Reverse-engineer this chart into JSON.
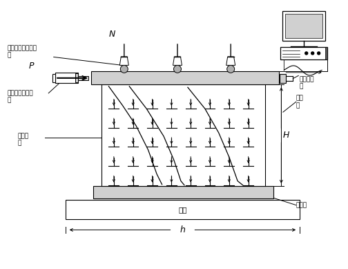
{
  "bg_color": "#ffffff",
  "line_color": "#000000",
  "gray_fill": "#b0b0b0",
  "light_gray": "#d0d0d0",
  "fig_width": 5.04,
  "fig_height": 3.89,
  "labels": {
    "belt_jack": "带定向滑轮的千斤\n顶",
    "jack_load": "千斤顶加水平荷\n载",
    "test_wall": "试验墙\n体",
    "N_label": "N",
    "P_label": "P",
    "load_beam": "荷载分配\n梁",
    "disp_meter": "位移\n计",
    "H_label": "H",
    "h_label": "h",
    "pedestal": "台座",
    "found_beam": "基础梁"
  }
}
